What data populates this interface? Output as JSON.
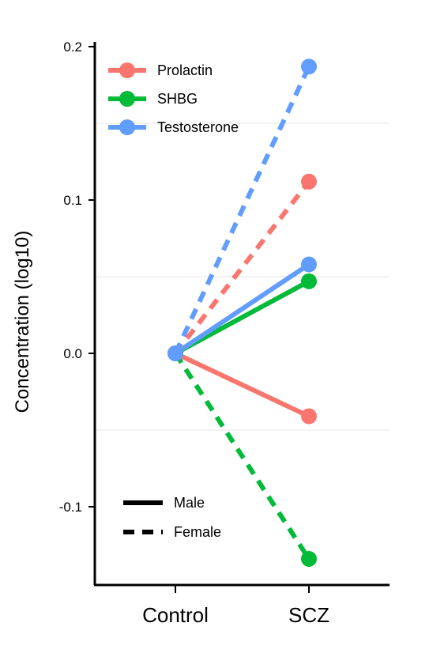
{
  "chart_data": {
    "type": "line",
    "title": "",
    "xlabel": "",
    "ylabel": "Concentration (log10)",
    "categories": [
      "Control",
      "SCZ"
    ],
    "ylim": [
      -0.15,
      0.2
    ],
    "yticks": [
      0.2,
      0.1,
      0.0,
      -0.1
    ],
    "ytick_labels": [
      "0.2",
      "0.1",
      "0.0",
      "-0.1"
    ],
    "grid": "faint horizontal minor gridlines",
    "legend_hormone": {
      "placement": "top-left",
      "entries": [
        "Prolactin",
        "SHBG",
        "Testosterone"
      ]
    },
    "legend_sex": {
      "placement": "bottom-left",
      "entries": [
        {
          "label": "Male",
          "style": "solid"
        },
        {
          "label": "Female",
          "style": "dashed"
        }
      ]
    },
    "colors": {
      "Prolactin": "#F8766D",
      "SHBG": "#00BA38",
      "Testosterone": "#619CFF"
    },
    "series": [
      {
        "hormone": "Prolactin",
        "sex": "Male",
        "style": "solid",
        "values": [
          0.0,
          -0.041
        ]
      },
      {
        "hormone": "SHBG",
        "sex": "Male",
        "style": "solid",
        "values": [
          0.0,
          0.047
        ]
      },
      {
        "hormone": "Testosterone",
        "sex": "Male",
        "style": "solid",
        "values": [
          0.0,
          0.058
        ]
      },
      {
        "hormone": "Prolactin",
        "sex": "Female",
        "style": "dashed",
        "values": [
          0.0,
          0.112
        ]
      },
      {
        "hormone": "SHBG",
        "sex": "Female",
        "style": "dashed",
        "values": [
          0.0,
          -0.134
        ]
      },
      {
        "hormone": "Testosterone",
        "sex": "Female",
        "style": "dashed",
        "values": [
          0.0,
          0.187
        ]
      }
    ]
  }
}
